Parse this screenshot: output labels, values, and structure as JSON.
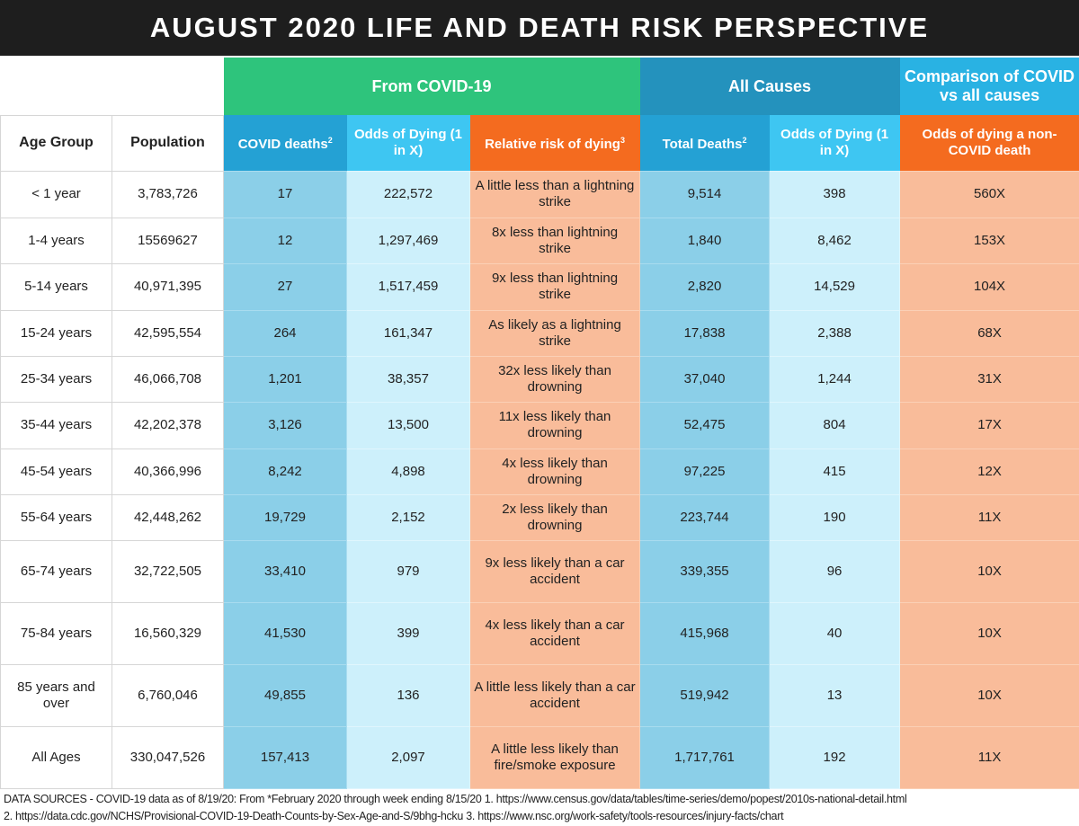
{
  "title": "AUGUST 2020 LIFE AND DEATH RISK PERSPECTIVE",
  "groups": {
    "covid": "From COVID-19",
    "all": "All Causes",
    "comparison": "Comparison of COVID vs all causes"
  },
  "headers": [
    "Age Group",
    "Population",
    "COVID deaths",
    "Odds of Dying (1 in X)",
    "Relative risk of dying",
    "Total Deaths",
    "Odds of Dying (1 in X)",
    "Odds of dying a non-COVID death"
  ],
  "header_sups": {
    "covid_deaths": "2",
    "relative_risk": "3",
    "total_deaths": "2"
  },
  "colors": {
    "title_bg": "#1e1e1e",
    "covid_group": "#2ec47c",
    "all_causes_group": "#2492bd",
    "comparison_group": "#29b2e3",
    "deaths_header": "#24a1d4",
    "odds_header": "#3ec6f2",
    "orange_header": "#f46b1f",
    "deaths_cell": "#8bcfe8",
    "odds_cell": "#cdf0fb",
    "orange_cell": "#f9bc9a"
  },
  "rows": [
    [
      "< 1 year",
      "3,783,726",
      "17",
      "222,572",
      "A little less than a lightning strike",
      "9,514",
      "398",
      "560X"
    ],
    [
      "1-4 years",
      "15569627",
      "12",
      "1,297,469",
      "8x less than lightning strike",
      "1,840",
      "8,462",
      "153X"
    ],
    [
      "5-14 years",
      "40,971,395",
      "27",
      "1,517,459",
      "9x less than lightning strike",
      "2,820",
      "14,529",
      "104X"
    ],
    [
      "15-24 years",
      "42,595,554",
      "264",
      "161,347",
      "As likely as a lightning strike",
      "17,838",
      "2,388",
      "68X"
    ],
    [
      "25-34 years",
      "46,066,708",
      "1,201",
      "38,357",
      "32x less likely than drowning",
      "37,040",
      "1,244",
      "31X"
    ],
    [
      "35-44 years",
      "42,202,378",
      "3,126",
      "13,500",
      "11x less likely than drowning",
      "52,475",
      "804",
      "17X"
    ],
    [
      "45-54 years",
      "40,366,996",
      "8,242",
      "4,898",
      "4x less likely than drowning",
      "97,225",
      "415",
      "12X"
    ],
    [
      "55-64 years",
      "42,448,262",
      "19,729",
      "2,152",
      "2x less likely than drowning",
      "223,744",
      "190",
      "11X"
    ],
    [
      "65-74 years",
      "32,722,505",
      "33,410",
      "979",
      "9x less likely than a car accident",
      "339,355",
      "96",
      "10X"
    ],
    [
      "75-84 years",
      "16,560,329",
      "41,530",
      "399",
      "4x less likely than a car accident",
      "415,968",
      "40",
      "10X"
    ],
    [
      "85 years and over",
      "6,760,046",
      "49,855",
      "136",
      "A little less likely than a car accident",
      "519,942",
      "13",
      "10X"
    ],
    [
      "All Ages",
      "330,047,526",
      "157,413",
      "2,097",
      "A little less likely than fire/smoke exposure",
      "1,717,761",
      "192",
      "11X"
    ]
  ],
  "footer": {
    "line1": "DATA SOURCES - COVID-19 data as of 8/19/20: From *February 2020 through week ending 8/15/20   1. https://www.census.gov/data/tables/time-series/demo/popest/2010s-national-detail.html",
    "line2": "2. https://data.cdc.gov/NCHS/Provisional-COVID-19-Death-Counts-by-Sex-Age-and-S/9bhg-hcku   3. https://www.nsc.org/work-safety/tools-resources/injury-facts/chart"
  }
}
